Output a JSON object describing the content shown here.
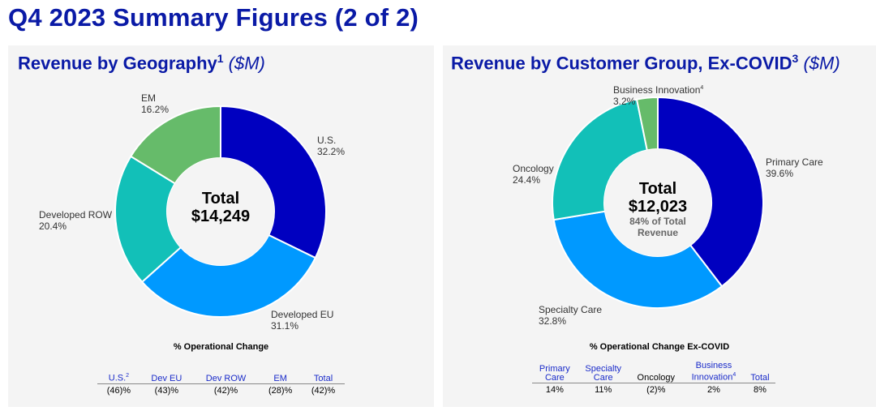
{
  "page_title": "Q4 2023 Summary Figures (2 of 2)",
  "colors": {
    "title_blue": "#0a1aa6",
    "dark_blue": "#0000c0",
    "light_blue": "#0099ff",
    "teal": "#12c0b8",
    "green": "#66bb6a",
    "table_header_blue": "#1a2bc9"
  },
  "left": {
    "title": "Revenue by Geography",
    "title_sup": "1",
    "title_unit": "($M)",
    "center": {
      "line1": "Total",
      "line2": "$14,249"
    },
    "change_title": "% Operational Change",
    "change_table": [
      {
        "header": "U.S.",
        "sup": "2",
        "value": "(46)%"
      },
      {
        "header": "Dev EU",
        "sup": "",
        "value": "(43)%"
      },
      {
        "header": "Dev ROW",
        "sup": "",
        "value": "(42)%"
      },
      {
        "header": "EM",
        "sup": "",
        "value": "(28)%"
      },
      {
        "header": "Total",
        "sup": "",
        "value": "(42)%"
      }
    ]
  },
  "right": {
    "title": "Revenue by Customer Group, Ex-COVID",
    "title_sup": "3",
    "title_unit": "($M)",
    "center": {
      "line1": "Total",
      "line2": "$12,023",
      "line3": "84% of Total",
      "line4": "Revenue"
    },
    "change_title": "% Operational Change Ex-COVID",
    "change_table": [
      {
        "header1": "Primary",
        "header2": "Care",
        "sup": "",
        "value": "14%"
      },
      {
        "header1": "Specialty",
        "header2": "Care",
        "sup": "",
        "value": "11%"
      },
      {
        "header1": "",
        "header2": "Oncology",
        "sup": "",
        "value": "(2)%"
      },
      {
        "header1": "Business",
        "header2": "Innovation",
        "sup": "4",
        "value": "2%"
      },
      {
        "header1": "",
        "header2": "Total",
        "sup": "",
        "value": "8%"
      }
    ]
  },
  "chart_data": [
    {
      "type": "pie",
      "title": "Revenue by Geography",
      "categories": [
        "U.S.",
        "Developed EU",
        "Developed ROW",
        "EM"
      ],
      "values": [
        32.2,
        31.1,
        20.4,
        16.2
      ],
      "value_labels": [
        "32.2%",
        "31.1%",
        "20.4%",
        "16.2%"
      ],
      "colors": [
        "#0000c0",
        "#0099ff",
        "#12c0b8",
        "#66bb6a"
      ],
      "legend": "none"
    },
    {
      "type": "pie",
      "title": "Revenue by Customer Group, Ex-COVID",
      "categories": [
        "Primary Care",
        "Specialty Care",
        "Oncology",
        "Business Innovation"
      ],
      "category_sups": [
        "",
        "",
        "",
        "4"
      ],
      "values": [
        39.6,
        32.8,
        24.4,
        3.2
      ],
      "value_labels": [
        "39.6%",
        "32.8%",
        "24.4%",
        "3.2%"
      ],
      "colors": [
        "#0000c0",
        "#0099ff",
        "#12c0b8",
        "#66bb6a"
      ],
      "legend": "none"
    }
  ]
}
